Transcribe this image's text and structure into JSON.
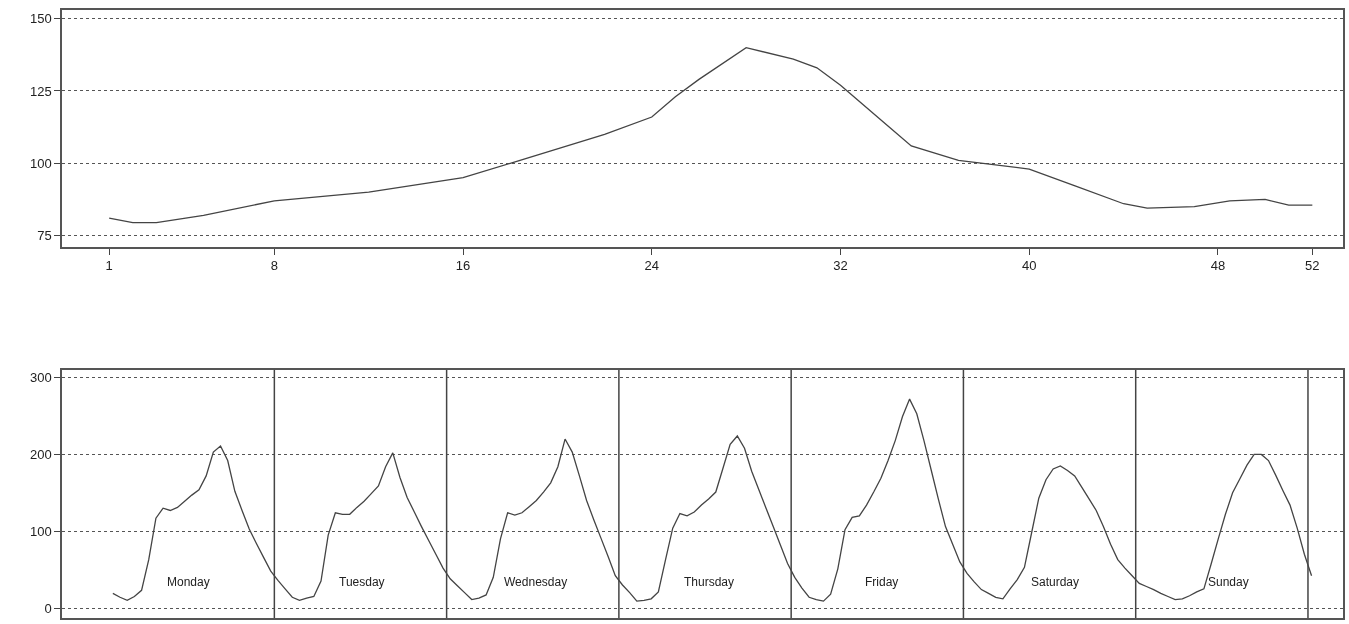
{
  "chart_data": [
    {
      "type": "line",
      "x": [
        1,
        2,
        3,
        5,
        8,
        12,
        16,
        18,
        22,
        24,
        25,
        26,
        28,
        30,
        31,
        32,
        34,
        35,
        37,
        40,
        42,
        44,
        45,
        47,
        48.5,
        50,
        51,
        52
      ],
      "series": [
        {
          "color": "#444444",
          "values": [
            81,
            79.5,
            79.5,
            82,
            87,
            90,
            95,
            100,
            110,
            116,
            123,
            129,
            140,
            136,
            133,
            127,
            113,
            106,
            101,
            98,
            92,
            86,
            84.5,
            85,
            87,
            87.5,
            85.5,
            85.5
          ]
        }
      ],
      "xlim": [
        -1,
        53.3
      ],
      "ylim": [
        71,
        153
      ],
      "xticks": [
        1,
        8,
        16,
        24,
        32,
        40,
        48,
        52
      ],
      "yticks": [
        75,
        100,
        125,
        150
      ],
      "grid": "y",
      "line_style": "solid"
    },
    {
      "type": "line",
      "categories": [
        null,
        null,
        null,
        null,
        null,
        null,
        null,
        null,
        null,
        null,
        null,
        null,
        null,
        null,
        null,
        null,
        null,
        null,
        null,
        null,
        null,
        null,
        null,
        null,
        null,
        null,
        null,
        null,
        null,
        null,
        null,
        null,
        null,
        null,
        null,
        null,
        null,
        null,
        null,
        null,
        null,
        null,
        null,
        null,
        null,
        null,
        null,
        null,
        null,
        null,
        null,
        null,
        null,
        null,
        null,
        null,
        null,
        null,
        null,
        null,
        null,
        null,
        null,
        null,
        null,
        null,
        null,
        null,
        null,
        null,
        null,
        null,
        null,
        null,
        null,
        null,
        null,
        null,
        null,
        null,
        null,
        null,
        null,
        null,
        null,
        null,
        null,
        null,
        null,
        null,
        null,
        null,
        null,
        null,
        null,
        null,
        null,
        null,
        null,
        null,
        null,
        null,
        null,
        null,
        null,
        null,
        null,
        null,
        null,
        null,
        null,
        null,
        null,
        null,
        null,
        null,
        null,
        null,
        null,
        null,
        null,
        null,
        null,
        null,
        null,
        null,
        null,
        null,
        null,
        null,
        null,
        null,
        null,
        null,
        null,
        null,
        null,
        null,
        null,
        null,
        null,
        null,
        null,
        null,
        null,
        null,
        null,
        null,
        null,
        null,
        null,
        null,
        null,
        null,
        null,
        null,
        null,
        null,
        null,
        null,
        null,
        null,
        null,
        null,
        null,
        null,
        null,
        null,
        null
      ],
      "series": [
        {
          "color": "#444444",
          "values": [
            null,
            19,
            14,
            10,
            15,
            23,
            63,
            117,
            130,
            127,
            131,
            139,
            147,
            154,
            172,
            203,
            211,
            192,
            152,
            127,
            103,
            84,
            66,
            48,
            36,
            25,
            14,
            10,
            13,
            15,
            35,
            95,
            124,
            122,
            122,
            131,
            139,
            149,
            159,
            184,
            202,
            170,
            144,
            125,
            106,
            88,
            70,
            52,
            38,
            29,
            20,
            11,
            13,
            17,
            40,
            90,
            124,
            121,
            124,
            132,
            140,
            151,
            163,
            184,
            220,
            203,
            172,
            140,
            115,
            91,
            67,
            42,
            30,
            20,
            9,
            10,
            12,
            21,
            63,
            104,
            123,
            120,
            125,
            134,
            142,
            151,
            182,
            213,
            224,
            208,
            178,
            154,
            130,
            106,
            82,
            58,
            40,
            26,
            14,
            11,
            9,
            18,
            51,
            102,
            118,
            120,
            134,
            151,
            169,
            192,
            218,
            249,
            272,
            253,
            218,
            180,
            142,
            106,
            83,
            60,
            45,
            34,
            24,
            19,
            14,
            12,
            25,
            37,
            53,
            98,
            143,
            167,
            181,
            185,
            179,
            172,
            157,
            142,
            127,
            106,
            83,
            63,
            52,
            42,
            32,
            28,
            24,
            19,
            15,
            11,
            12,
            16,
            21,
            25,
            57,
            90,
            122,
            150,
            168,
            186,
            200,
            200,
            192,
            173,
            153,
            134,
            104,
            70,
            42
          ]
        }
      ],
      "ylim": [
        -13,
        310
      ],
      "yticks": [
        0,
        100,
        200,
        300
      ],
      "grid": true,
      "line_style": "solid",
      "tick_labels": "y",
      "annotations": [
        "Monday",
        "Tuesday",
        "Wednesday",
        "Thursday",
        "Friday",
        "Saturday",
        "Sunday"
      ]
    }
  ]
}
